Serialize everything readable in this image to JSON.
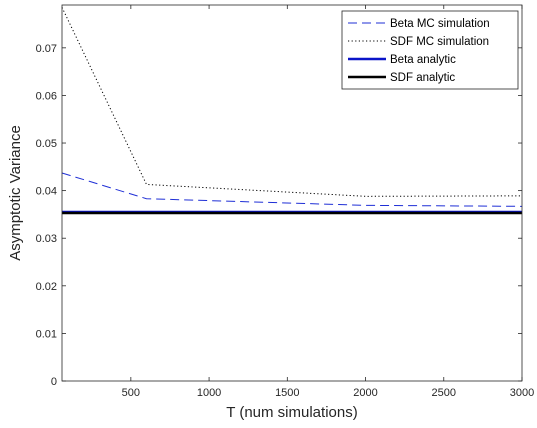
{
  "chart_data": {
    "type": "line",
    "title": "",
    "xlabel": "T (num simulations)",
    "ylabel": "Asymptotic Variance",
    "xlim": [
      60,
      3000
    ],
    "ylim": [
      0,
      0.079
    ],
    "xticks": [
      500,
      1000,
      1500,
      2000,
      2500,
      3000
    ],
    "xtick_labels": [
      "500",
      "1000",
      "1500",
      "2000",
      "2500",
      "3000"
    ],
    "yticks": [
      0,
      0.01,
      0.02,
      0.03,
      0.04,
      0.05,
      0.06,
      0.07
    ],
    "ytick_labels": [
      "0",
      "0.01",
      "0.02",
      "0.03",
      "0.04",
      "0.05",
      "0.06",
      "0.07"
    ],
    "grid": false,
    "legend_position": "top-right",
    "series": [
      {
        "name": "Beta MC simulation",
        "style": "dashed",
        "color": "#1f2fd6",
        "x": [
          60,
          600,
          2000,
          3000
        ],
        "y": [
          0.0437,
          0.0383,
          0.0369,
          0.0367
        ]
      },
      {
        "name": "SDF MC simulation",
        "style": "dotted",
        "color": "#000000",
        "x": [
          60,
          600,
          2000,
          3000
        ],
        "y": [
          0.0785,
          0.0413,
          0.0388,
          0.0389
        ]
      },
      {
        "name": "Beta analytic",
        "style": "solid",
        "color": "#0a14c8",
        "x": [
          60,
          3000
        ],
        "y": [
          0.0355,
          0.0355
        ]
      },
      {
        "name": "SDF analytic",
        "style": "solid",
        "color": "#000000",
        "x": [
          60,
          3000
        ],
        "y": [
          0.0353,
          0.0353
        ]
      }
    ]
  }
}
